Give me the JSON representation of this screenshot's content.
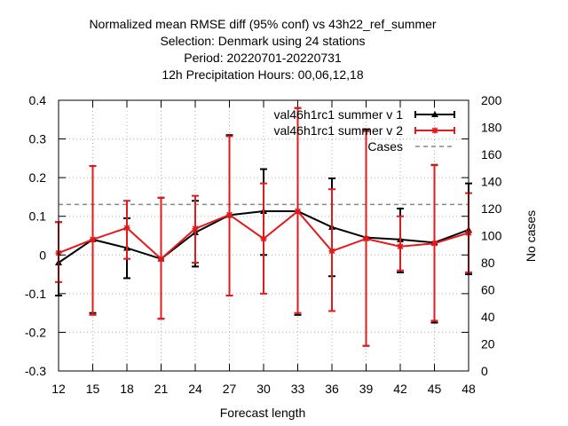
{
  "chart_data": {
    "type": "line",
    "title_lines": [
      "Normalized mean RMSE diff (95% conf) vs 43h22_ref_summer",
      "Selection: Denmark using    24 stations",
      "Period: 20220701-20220731",
      "12h Precipitation   Hours:  00,06,12,18"
    ],
    "xlabel": "Forecast length",
    "ylabel": "",
    "y2label": "No cases",
    "x": [
      12,
      15,
      18,
      21,
      24,
      27,
      30,
      33,
      36,
      39,
      42,
      45,
      48
    ],
    "xlim": [
      12,
      48
    ],
    "ylim": [
      -0.3,
      0.4
    ],
    "y2lim": [
      0,
      200
    ],
    "yticks": [
      -0.3,
      -0.2,
      -0.1,
      0,
      0.1,
      0.2,
      0.3,
      0.4
    ],
    "ytick_labels": [
      "-0.3",
      "-0.2",
      "-0.1",
      "0",
      "0.1",
      "0.2",
      "0.3",
      "0.4"
    ],
    "y2ticks": [
      0,
      20,
      40,
      60,
      80,
      100,
      120,
      140,
      160,
      180,
      200
    ],
    "grid": true,
    "legend_position": "top-right",
    "series": [
      {
        "name": "val46h1rc1_summer_v1",
        "legend_label": "val46h1rc1 summer v 1",
        "color": "#000000",
        "marker": "triangle",
        "values": [
          -0.02,
          0.04,
          0.018,
          -0.01,
          0.058,
          0.103,
          0.113,
          0.113,
          0.072,
          0.045,
          0.04,
          0.032,
          0.065
        ],
        "err_low": [
          -0.105,
          -0.15,
          -0.06,
          -0.165,
          -0.03,
          -0.105,
          0.0,
          -0.155,
          -0.055,
          -0.235,
          -0.045,
          -0.175,
          -0.05
        ],
        "err_high": [
          0.085,
          0.23,
          0.095,
          0.148,
          0.14,
          0.31,
          0.222,
          0.38,
          0.198,
          0.325,
          0.12,
          0.233,
          0.185
        ]
      },
      {
        "name": "val46h1rc1_summer_v2",
        "legend_label": "val46h1rc1 summer v 2",
        "color": "#e31a1c",
        "marker": "star",
        "values": [
          0.005,
          0.04,
          0.07,
          -0.01,
          0.068,
          0.104,
          0.042,
          0.113,
          0.01,
          0.042,
          0.022,
          0.03,
          0.057
        ],
        "err_low": [
          -0.07,
          -0.155,
          -0.01,
          -0.165,
          -0.02,
          -0.105,
          -0.1,
          -0.15,
          -0.145,
          -0.235,
          -0.04,
          -0.17,
          -0.045
        ],
        "err_high": [
          0.085,
          0.23,
          0.14,
          0.148,
          0.153,
          0.307,
          0.185,
          0.38,
          0.17,
          0.32,
          0.1,
          0.232,
          0.16
        ]
      }
    ],
    "cases": {
      "name": "Cases",
      "value": 123,
      "color": "#888888",
      "style": "dashed"
    }
  }
}
